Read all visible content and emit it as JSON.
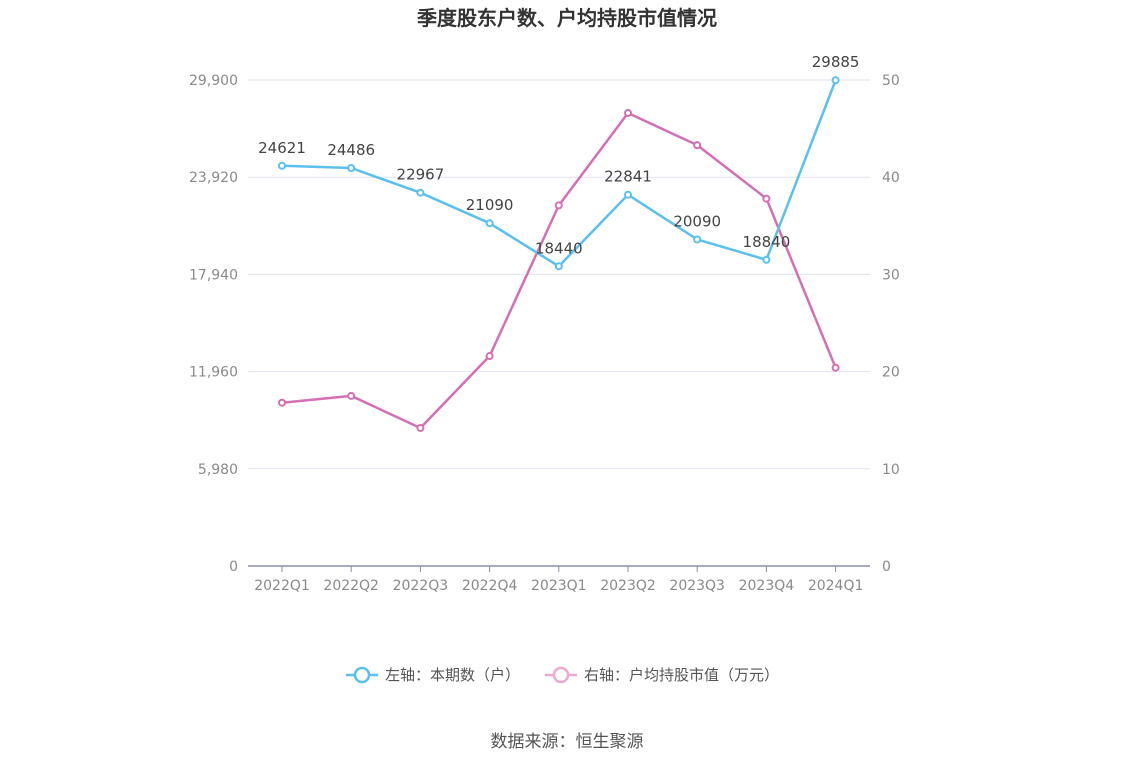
{
  "chart_data": {
    "type": "line",
    "title": "季度股东户数、户均持股市值情况",
    "categories": [
      "2022Q1",
      "2022Q2",
      "2022Q3",
      "2022Q4",
      "2023Q1",
      "2023Q2",
      "2023Q3",
      "2023Q4",
      "2024Q1"
    ],
    "left_axis": {
      "min": 0,
      "max": 29900,
      "ticks": [
        "0",
        "5,980",
        "11,960",
        "17,940",
        "23,920",
        "29,900"
      ]
    },
    "right_axis": {
      "min": 0,
      "max": 50,
      "ticks": [
        "0",
        "10",
        "20",
        "30",
        "40",
        "50"
      ]
    },
    "series": [
      {
        "name": "左轴：本期数（户）",
        "axis": "left",
        "color": "#5bc0f0",
        "values": [
          24621,
          24486,
          22967,
          21090,
          18440,
          22841,
          20090,
          18840,
          29885
        ],
        "labels": [
          "24621",
          "24486",
          "22967",
          "21090",
          "18440",
          "22841",
          "20090",
          "18840",
          "29885"
        ]
      },
      {
        "name": "右轴：户均持股市值（万元）",
        "axis": "right",
        "color": "#d46fb3",
        "legend_color": "#f0a8d0",
        "values": [
          16.8,
          17.5,
          14.2,
          21.6,
          37.1,
          46.6,
          43.3,
          37.8,
          20.4
        ]
      }
    ],
    "grid": true,
    "legend_position": "bottom"
  },
  "source": "数据来源：恒生聚源"
}
